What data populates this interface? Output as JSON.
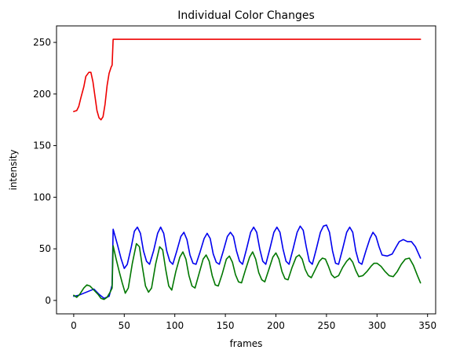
{
  "chart_data": {
    "type": "line",
    "title": "Individual Color Changes",
    "xlabel": "frames",
    "ylabel": "intensity",
    "xlim": [
      -17,
      358
    ],
    "ylim": [
      -13,
      266
    ],
    "xticks": [
      0,
      50,
      100,
      150,
      200,
      250,
      300,
      350
    ],
    "yticks": [
      0,
      50,
      100,
      150,
      200,
      250
    ],
    "grid": false,
    "legend": "none",
    "series": [
      {
        "color": "#ee0000",
        "points": [
          [
            0,
            183
          ],
          [
            3,
            184
          ],
          [
            5,
            188
          ],
          [
            7,
            196
          ],
          [
            10,
            207
          ],
          [
            12,
            217
          ],
          [
            15,
            221
          ],
          [
            17,
            221
          ],
          [
            19,
            212
          ],
          [
            21,
            198
          ],
          [
            23,
            184
          ],
          [
            25,
            177
          ],
          [
            27,
            175
          ],
          [
            29,
            178
          ],
          [
            31,
            190
          ],
          [
            33,
            208
          ],
          [
            35,
            220
          ],
          [
            37,
            226
          ],
          [
            38,
            228
          ],
          [
            39,
            253
          ],
          [
            45,
            253
          ],
          [
            60,
            253
          ],
          [
            80,
            253
          ],
          [
            100,
            253
          ],
          [
            120,
            253
          ],
          [
            140,
            253
          ],
          [
            160,
            253
          ],
          [
            180,
            253
          ],
          [
            200,
            253
          ],
          [
            220,
            253
          ],
          [
            240,
            253
          ],
          [
            260,
            253
          ],
          [
            280,
            253
          ],
          [
            300,
            253
          ],
          [
            320,
            253
          ],
          [
            343,
            253
          ]
        ]
      },
      {
        "color": "#0000ee",
        "points": [
          [
            0,
            4
          ],
          [
            5,
            5
          ],
          [
            10,
            7
          ],
          [
            15,
            9
          ],
          [
            20,
            11
          ],
          [
            25,
            6
          ],
          [
            30,
            2
          ],
          [
            35,
            4
          ],
          [
            38,
            15
          ],
          [
            39,
            69
          ],
          [
            43,
            55
          ],
          [
            47,
            40
          ],
          [
            50,
            31
          ],
          [
            53,
            35
          ],
          [
            57,
            52
          ],
          [
            60,
            67
          ],
          [
            63,
            71
          ],
          [
            66,
            65
          ],
          [
            69,
            48
          ],
          [
            72,
            38
          ],
          [
            75,
            35
          ],
          [
            79,
            48
          ],
          [
            83,
            65
          ],
          [
            86,
            71
          ],
          [
            89,
            65
          ],
          [
            92,
            48
          ],
          [
            95,
            38
          ],
          [
            98,
            35
          ],
          [
            102,
            48
          ],
          [
            106,
            62
          ],
          [
            109,
            66
          ],
          [
            112,
            59
          ],
          [
            115,
            44
          ],
          [
            118,
            36
          ],
          [
            121,
            35
          ],
          [
            125,
            47
          ],
          [
            129,
            60
          ],
          [
            132,
            65
          ],
          [
            135,
            60
          ],
          [
            138,
            45
          ],
          [
            141,
            37
          ],
          [
            144,
            35
          ],
          [
            148,
            48
          ],
          [
            152,
            62
          ],
          [
            155,
            66
          ],
          [
            158,
            62
          ],
          [
            161,
            48
          ],
          [
            164,
            38
          ],
          [
            167,
            35
          ],
          [
            171,
            50
          ],
          [
            175,
            66
          ],
          [
            178,
            71
          ],
          [
            181,
            66
          ],
          [
            184,
            50
          ],
          [
            187,
            38
          ],
          [
            190,
            35
          ],
          [
            194,
            50
          ],
          [
            198,
            66
          ],
          [
            201,
            71
          ],
          [
            204,
            66
          ],
          [
            207,
            50
          ],
          [
            210,
            38
          ],
          [
            213,
            35
          ],
          [
            217,
            50
          ],
          [
            221,
            66
          ],
          [
            224,
            72
          ],
          [
            227,
            68
          ],
          [
            230,
            52
          ],
          [
            233,
            38
          ],
          [
            236,
            35
          ],
          [
            240,
            50
          ],
          [
            244,
            66
          ],
          [
            247,
            72
          ],
          [
            250,
            73
          ],
          [
            253,
            66
          ],
          [
            256,
            48
          ],
          [
            259,
            36
          ],
          [
            262,
            35
          ],
          [
            266,
            50
          ],
          [
            270,
            66
          ],
          [
            273,
            71
          ],
          [
            276,
            66
          ],
          [
            279,
            48
          ],
          [
            282,
            37
          ],
          [
            285,
            35
          ],
          [
            289,
            48
          ],
          [
            293,
            60
          ],
          [
            296,
            66
          ],
          [
            299,
            62
          ],
          [
            302,
            52
          ],
          [
            305,
            44
          ],
          [
            310,
            43
          ],
          [
            315,
            45
          ],
          [
            319,
            52
          ],
          [
            322,
            57
          ],
          [
            326,
            59
          ],
          [
            330,
            57
          ],
          [
            334,
            57
          ],
          [
            338,
            52
          ],
          [
            343,
            41
          ]
        ]
      },
      {
        "color": "#007700",
        "points": [
          [
            0,
            5
          ],
          [
            3,
            3
          ],
          [
            6,
            6
          ],
          [
            10,
            12
          ],
          [
            13,
            15
          ],
          [
            16,
            14
          ],
          [
            20,
            10
          ],
          [
            24,
            6
          ],
          [
            27,
            2
          ],
          [
            30,
            1
          ],
          [
            33,
            3
          ],
          [
            36,
            8
          ],
          [
            38,
            12
          ],
          [
            39,
            53
          ],
          [
            42,
            40
          ],
          [
            45,
            28
          ],
          [
            48,
            17
          ],
          [
            51,
            7
          ],
          [
            54,
            12
          ],
          [
            58,
            36
          ],
          [
            62,
            55
          ],
          [
            65,
            52
          ],
          [
            68,
            32
          ],
          [
            71,
            14
          ],
          [
            74,
            8
          ],
          [
            77,
            12
          ],
          [
            81,
            35
          ],
          [
            85,
            52
          ],
          [
            88,
            49
          ],
          [
            91,
            30
          ],
          [
            94,
            14
          ],
          [
            97,
            10
          ],
          [
            101,
            28
          ],
          [
            105,
            42
          ],
          [
            108,
            47
          ],
          [
            111,
            40
          ],
          [
            114,
            24
          ],
          [
            117,
            14
          ],
          [
            120,
            12
          ],
          [
            124,
            26
          ],
          [
            128,
            40
          ],
          [
            131,
            44
          ],
          [
            134,
            38
          ],
          [
            137,
            24
          ],
          [
            140,
            15
          ],
          [
            143,
            14
          ],
          [
            147,
            26
          ],
          [
            151,
            40
          ],
          [
            154,
            43
          ],
          [
            157,
            37
          ],
          [
            160,
            25
          ],
          [
            163,
            18
          ],
          [
            166,
            17
          ],
          [
            170,
            30
          ],
          [
            174,
            42
          ],
          [
            177,
            47
          ],
          [
            180,
            40
          ],
          [
            183,
            27
          ],
          [
            186,
            20
          ],
          [
            189,
            18
          ],
          [
            193,
            30
          ],
          [
            197,
            42
          ],
          [
            200,
            46
          ],
          [
            203,
            40
          ],
          [
            206,
            28
          ],
          [
            209,
            21
          ],
          [
            212,
            20
          ],
          [
            216,
            32
          ],
          [
            220,
            42
          ],
          [
            223,
            44
          ],
          [
            226,
            40
          ],
          [
            229,
            30
          ],
          [
            232,
            24
          ],
          [
            235,
            22
          ],
          [
            239,
            30
          ],
          [
            243,
            38
          ],
          [
            246,
            41
          ],
          [
            249,
            40
          ],
          [
            252,
            33
          ],
          [
            255,
            25
          ],
          [
            258,
            22
          ],
          [
            262,
            24
          ],
          [
            266,
            32
          ],
          [
            270,
            38
          ],
          [
            273,
            41
          ],
          [
            276,
            37
          ],
          [
            279,
            29
          ],
          [
            282,
            23
          ],
          [
            286,
            24
          ],
          [
            290,
            28
          ],
          [
            294,
            33
          ],
          [
            297,
            36
          ],
          [
            300,
            36
          ],
          [
            304,
            33
          ],
          [
            308,
            28
          ],
          [
            312,
            24
          ],
          [
            316,
            23
          ],
          [
            320,
            28
          ],
          [
            324,
            35
          ],
          [
            328,
            40
          ],
          [
            332,
            41
          ],
          [
            336,
            34
          ],
          [
            340,
            24
          ],
          [
            343,
            17
          ]
        ]
      }
    ]
  }
}
